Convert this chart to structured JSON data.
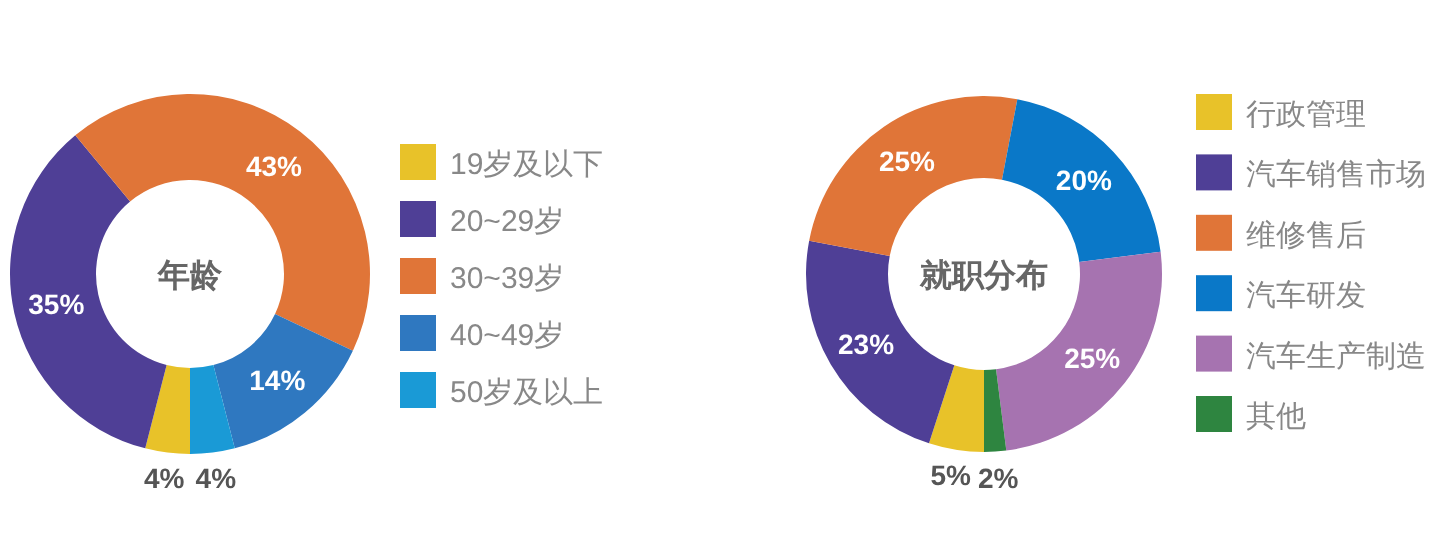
{
  "chart_data": [
    {
      "type": "donut",
      "title": "年龄",
      "categories": [
        "19岁及以下",
        "20~29岁",
        "30~39岁",
        "40~49岁",
        "50岁及以上"
      ],
      "values": [
        4,
        35,
        43,
        14,
        4
      ],
      "colors": [
        "#e8c229",
        "#4f3f96",
        "#e07538",
        "#2f78c0",
        "#1a9ad6"
      ],
      "value_labels": [
        "4%",
        "35%",
        "43%",
        "14%",
        "4%"
      ],
      "legend": "right"
    },
    {
      "type": "donut",
      "title": "就职分布",
      "categories": [
        "行政管理",
        "汽车销售市场",
        "维修售后",
        "汽车研发",
        "汽车生产制造",
        "其他"
      ],
      "values": [
        5,
        23,
        25,
        20,
        25,
        2
      ],
      "colors": [
        "#e8c229",
        "#4f3f96",
        "#e07538",
        "#0a78c8",
        "#a673b0",
        "#2e8540"
      ],
      "value_labels": [
        "5%",
        "23%",
        "25%",
        "20%",
        "25%",
        "2%"
      ],
      "legend": "right"
    }
  ]
}
